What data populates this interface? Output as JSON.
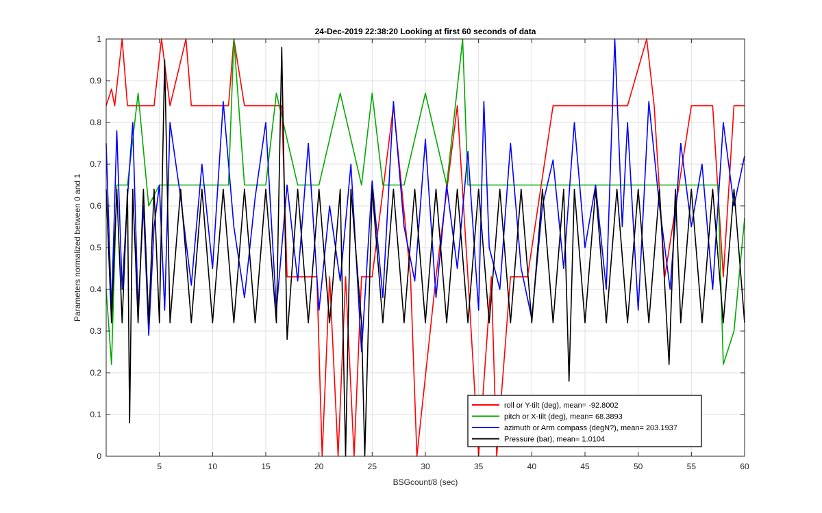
{
  "chart_data": {
    "type": "line",
    "title": "24-Dec-2019 22:38:20 Looking at first 60 seconds of data",
    "xlabel": "BSGcount/8 (sec)",
    "ylabel": "Parameters normalized between 0 and 1",
    "xlim": [
      0,
      60
    ],
    "ylim": [
      0,
      1
    ],
    "x_ticks": [
      5,
      10,
      15,
      20,
      25,
      30,
      35,
      40,
      45,
      50,
      55,
      60
    ],
    "y_ticks": [
      0,
      0.1,
      0.2,
      0.3,
      0.4,
      0.5,
      0.6,
      0.7,
      0.8,
      0.9,
      1
    ],
    "x_tick_labels": [
      "5",
      "10",
      "15",
      "20",
      "25",
      "30",
      "35",
      "40",
      "45",
      "50",
      "55",
      "60"
    ],
    "y_tick_labels": [
      "0",
      "0.1",
      "0.2",
      "0.3",
      "0.4",
      "0.5",
      "0.6",
      "0.7",
      "0.8",
      "0.9",
      "1"
    ],
    "grid": true,
    "legend_position": "bottom-right",
    "series": [
      {
        "name": "roll or Y-tilt (deg), mean= -92.8002",
        "color": "#ff0000",
        "x": [
          0,
          0.5,
          0.8,
          1.5,
          2,
          3,
          4.5,
          5.2,
          6,
          7.5,
          8,
          10,
          11.5,
          12,
          13,
          15,
          16.5,
          17,
          19,
          19.8,
          20.3,
          21,
          21.8,
          22.5,
          23.3,
          24,
          25,
          27,
          28.6,
          29.2,
          31,
          33,
          34,
          35,
          36.2,
          36.7,
          38,
          39.6,
          42,
          44,
          46,
          49,
          50.8,
          51.5,
          52.5,
          55,
          57,
          58,
          59,
          60
        ],
        "y": [
          0.84,
          0.88,
          0.84,
          1.0,
          0.84,
          0.84,
          0.84,
          1.0,
          0.84,
          1.0,
          0.84,
          0.84,
          0.84,
          1.0,
          0.84,
          0.84,
          0.84,
          0.43,
          0.43,
          0.43,
          0.0,
          0.43,
          0.0,
          0.43,
          0.0,
          0.43,
          0.43,
          0.84,
          0.43,
          0.0,
          0.43,
          0.84,
          0.43,
          0.0,
          0.43,
          0.0,
          0.43,
          0.43,
          0.84,
          0.84,
          0.84,
          0.84,
          1.0,
          0.84,
          0.43,
          0.84,
          0.84,
          0.43,
          0.84,
          0.84
        ]
      },
      {
        "name": "pitch or X-tilt (deg), mean= 68.3893",
        "color": "#00aa00",
        "x": [
          0,
          0.5,
          1,
          2,
          3,
          4,
          5,
          6,
          8,
          10,
          11.5,
          12,
          13,
          15,
          16,
          18,
          19,
          20,
          22,
          24,
          25,
          26,
          28,
          30,
          32,
          33.5,
          34,
          35,
          36,
          38,
          40,
          42,
          44,
          46,
          48,
          50,
          52,
          54,
          56,
          57.5,
          58,
          59,
          60
        ],
        "y": [
          0.4,
          0.22,
          0.65,
          0.65,
          0.87,
          0.6,
          0.65,
          0.65,
          0.65,
          0.65,
          0.65,
          1.0,
          0.65,
          0.65,
          0.87,
          0.65,
          0.65,
          0.65,
          0.87,
          0.65,
          0.87,
          0.65,
          0.65,
          0.87,
          0.65,
          1.0,
          0.65,
          0.65,
          0.65,
          0.65,
          0.65,
          0.65,
          0.65,
          0.65,
          0.65,
          0.65,
          0.65,
          0.65,
          0.65,
          0.65,
          0.22,
          0.3,
          0.57
        ]
      },
      {
        "name": "azimuth or Arm compass (degN?), mean= 203.1937",
        "color": "#0000ff",
        "x": [
          0,
          0.5,
          1,
          1.5,
          2,
          2.5,
          3,
          3.5,
          4,
          4.5,
          5,
          5.5,
          6,
          7,
          8,
          9,
          10,
          11,
          12,
          13,
          14,
          15,
          16,
          17,
          18,
          19,
          20,
          21,
          22,
          23,
          24,
          25,
          26,
          27,
          28,
          29,
          30,
          31,
          32,
          33,
          34,
          35,
          35.5,
          36,
          37,
          38,
          39,
          40,
          41,
          42,
          43,
          44,
          45,
          46,
          47,
          47.8,
          48.5,
          49,
          50,
          51,
          52,
          53,
          54,
          55,
          56,
          57,
          58,
          59,
          60
        ],
        "y": [
          0.75,
          0.35,
          0.78,
          0.4,
          0.62,
          0.8,
          0.35,
          0.6,
          0.29,
          0.55,
          0.65,
          0.35,
          0.8,
          0.62,
          0.41,
          0.7,
          0.45,
          0.85,
          0.55,
          0.38,
          0.62,
          0.8,
          0.35,
          0.65,
          0.42,
          0.75,
          0.35,
          0.6,
          0.42,
          0.7,
          0.25,
          0.66,
          0.38,
          0.85,
          0.55,
          0.42,
          0.76,
          0.38,
          0.65,
          0.45,
          0.73,
          0.35,
          0.85,
          0.5,
          0.4,
          0.75,
          0.45,
          0.33,
          0.6,
          0.71,
          0.45,
          0.8,
          0.5,
          0.65,
          0.4,
          1.0,
          0.55,
          0.8,
          0.35,
          0.85,
          0.6,
          0.4,
          0.75,
          0.55,
          0.7,
          0.4,
          0.8,
          0.6,
          0.72
        ]
      },
      {
        "name": "Pressure (bar), mean= 1.0104",
        "color": "#000000",
        "x": [
          0,
          0.5,
          1,
          1.5,
          2,
          2.2,
          2.5,
          3,
          3.5,
          4,
          4.5,
          5,
          5.5,
          6,
          7,
          8,
          9,
          10,
          11,
          12,
          13,
          14,
          15,
          16,
          16.5,
          17,
          18,
          19,
          20,
          21,
          22,
          22.5,
          23,
          24,
          24.3,
          25,
          26,
          27,
          28,
          29,
          30,
          31,
          32,
          33,
          34,
          35,
          36,
          37,
          38,
          39,
          40,
          41,
          42,
          43,
          43.5,
          44,
          45,
          46,
          47,
          48,
          49,
          50,
          51,
          52,
          52.9,
          53.5,
          54,
          55,
          56,
          57,
          58,
          59,
          60
        ],
        "y": [
          0.64,
          0.32,
          0.64,
          0.32,
          0.64,
          0.08,
          0.64,
          0.32,
          0.64,
          0.32,
          0.64,
          0.32,
          0.95,
          0.32,
          0.64,
          0.32,
          0.64,
          0.32,
          0.64,
          0.32,
          0.64,
          0.32,
          0.64,
          0.32,
          0.98,
          0.28,
          0.64,
          0.32,
          0.64,
          0.32,
          0.64,
          0.0,
          0.64,
          0.32,
          0.0,
          0.64,
          0.32,
          0.64,
          0.32,
          0.64,
          0.32,
          0.64,
          0.32,
          0.64,
          0.32,
          0.64,
          0.32,
          0.64,
          0.32,
          0.64,
          0.32,
          0.64,
          0.32,
          0.64,
          0.18,
          0.64,
          0.32,
          0.64,
          0.32,
          0.64,
          0.32,
          0.64,
          0.32,
          0.64,
          0.22,
          0.64,
          0.32,
          0.64,
          0.32,
          0.64,
          0.32,
          0.64,
          0.32
        ]
      }
    ]
  }
}
